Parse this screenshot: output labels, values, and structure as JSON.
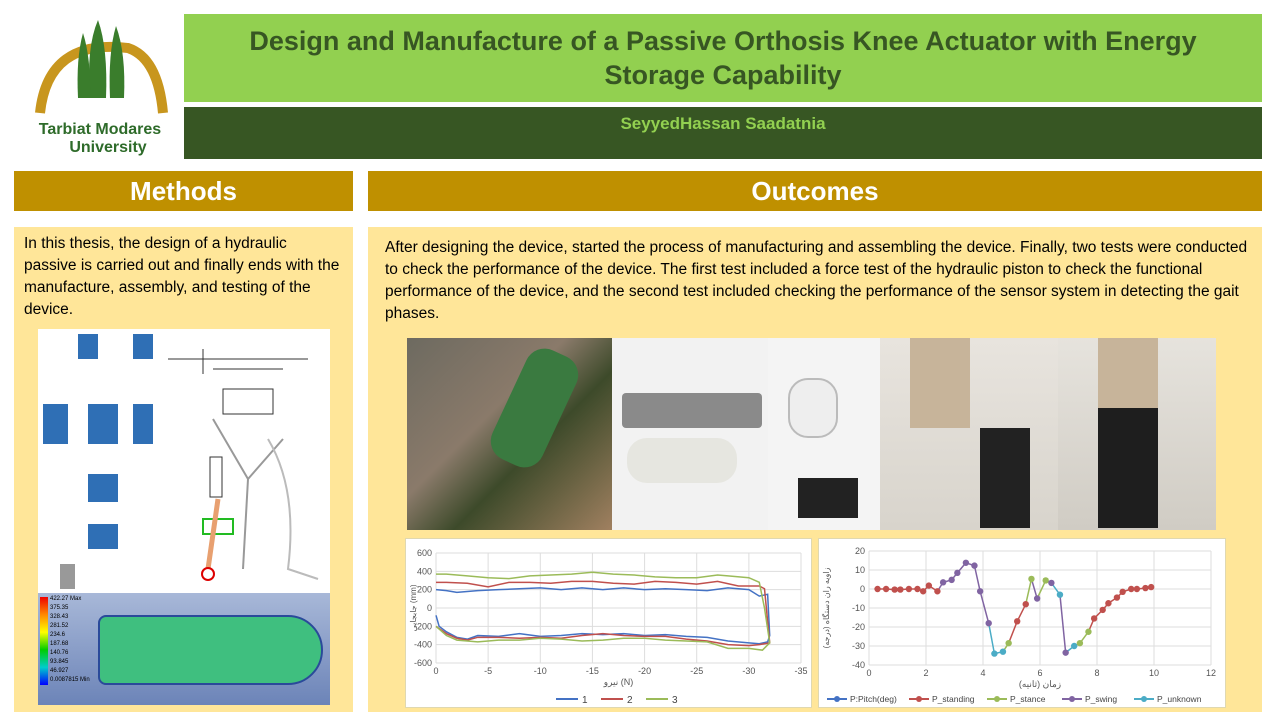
{
  "logo": {
    "name": "Tarbiat Modares University",
    "line1": "Tarbiat Modares",
    "line2": "University"
  },
  "title": "Design and Manufacture of a Passive Orthosis Knee Actuator with Energy Storage Capability",
  "author": "SeyyedHassan Saadatnia",
  "methods": {
    "heading": "Methods",
    "text": "In this thesis, the design of a hydraulic passive is carried out and finally ends with the manufacture, assembly, and testing of the device.",
    "fem_legend": [
      "422.27 Max",
      "375.35",
      "328.43",
      "281.52",
      "234.6",
      "187.68",
      "140.76",
      "93.845",
      "46.927",
      "0.0087815 Min"
    ]
  },
  "outcomes": {
    "heading": "Outcomes",
    "text": "After designing the device, started the process of manufacturing and assembling the device. Finally, two tests were conducted to check the performance of the device. The first test included a force test of the hydraulic piston to check the functional performance of the device, and the second test included checking the performance of the sensor system in detecting the gait phases."
  },
  "colors": {
    "title_bg": "#92d050",
    "author_bg": "#375623",
    "header_bg": "#bf9000",
    "panel_bg": "#ffe699"
  },
  "chart_data": [
    {
      "type": "line",
      "xlabel": "نیرو (N)",
      "ylabel": "جابجایی (mm)",
      "xlim": [
        0,
        -35
      ],
      "ylim": [
        -600,
        600
      ],
      "xticks": [
        0,
        -5,
        -10,
        -15,
        -20,
        -25,
        -30,
        -35
      ],
      "yticks": [
        600,
        400,
        200,
        0,
        -200,
        -400,
        -600
      ],
      "grid": true,
      "legend": "bottom",
      "series": [
        {
          "name": "1",
          "color": "#4472c4",
          "points": [
            [
              0,
              -80
            ],
            [
              -0.3,
              -200
            ],
            [
              -1,
              -260
            ],
            [
              -2,
              -320
            ],
            [
              -3,
              -340
            ],
            [
              -4,
              -300
            ],
            [
              -6,
              -310
            ],
            [
              -8,
              -280
            ],
            [
              -10,
              -310
            ],
            [
              -12,
              -300
            ],
            [
              -14,
              -280
            ],
            [
              -16,
              -290
            ],
            [
              -18,
              -280
            ],
            [
              -20,
              -300
            ],
            [
              -22,
              -290
            ],
            [
              -24,
              -310
            ],
            [
              -26,
              -320
            ],
            [
              -28,
              -360
            ],
            [
              -30,
              -380
            ],
            [
              -31,
              -390
            ],
            [
              -31.8,
              -370
            ],
            [
              -32,
              -300
            ],
            [
              -31.8,
              150
            ],
            [
              -31,
              130
            ],
            [
              -30,
              200
            ],
            [
              -28,
              220
            ],
            [
              -26,
              190
            ],
            [
              -24,
              200
            ],
            [
              -22,
              210
            ],
            [
              -20,
              200
            ],
            [
              -18,
              220
            ],
            [
              -16,
              200
            ],
            [
              -14,
              220
            ],
            [
              -12,
              200
            ],
            [
              -10,
              220
            ],
            [
              -8,
              210
            ],
            [
              -6,
              200
            ],
            [
              -4,
              190
            ],
            [
              -2,
              170
            ],
            [
              -1,
              190
            ],
            [
              0,
              200
            ]
          ]
        },
        {
          "name": "2",
          "color": "#c0504d",
          "points": [
            [
              0,
              -200
            ],
            [
              -1,
              -280
            ],
            [
              -2,
              -330
            ],
            [
              -3,
              -350
            ],
            [
              -4,
              -320
            ],
            [
              -6,
              -320
            ],
            [
              -8,
              -330
            ],
            [
              -10,
              -320
            ],
            [
              -12,
              -330
            ],
            [
              -14,
              -300
            ],
            [
              -16,
              -280
            ],
            [
              -18,
              -300
            ],
            [
              -20,
              -310
            ],
            [
              -22,
              -310
            ],
            [
              -24,
              -340
            ],
            [
              -26,
              -360
            ],
            [
              -28,
              -400
            ],
            [
              -30,
              -410
            ],
            [
              -31,
              -400
            ],
            [
              -32,
              -380
            ],
            [
              -31.5,
              210
            ],
            [
              -31,
              240
            ],
            [
              -29,
              240
            ],
            [
              -27,
              290
            ],
            [
              -25,
              260
            ],
            [
              -23,
              280
            ],
            [
              -21,
              290
            ],
            [
              -19,
              260
            ],
            [
              -17,
              270
            ],
            [
              -15,
              290
            ],
            [
              -13,
              290
            ],
            [
              -11,
              270
            ],
            [
              -9,
              280
            ],
            [
              -7,
              280
            ],
            [
              -5,
              230
            ],
            [
              -3,
              270
            ],
            [
              -1,
              280
            ],
            [
              0,
              280
            ]
          ]
        },
        {
          "name": "3",
          "color": "#9bbb59",
          "points": [
            [
              0,
              -200
            ],
            [
              -1,
              -300
            ],
            [
              -2,
              -350
            ],
            [
              -4,
              -370
            ],
            [
              -6,
              -350
            ],
            [
              -8,
              -350
            ],
            [
              -10,
              -330
            ],
            [
              -12,
              -340
            ],
            [
              -14,
              -360
            ],
            [
              -16,
              -350
            ],
            [
              -18,
              -330
            ],
            [
              -20,
              -330
            ],
            [
              -22,
              -350
            ],
            [
              -24,
              -360
            ],
            [
              -26,
              -370
            ],
            [
              -28,
              -440
            ],
            [
              -30,
              -440
            ],
            [
              -31.3,
              -460
            ],
            [
              -32,
              -380
            ],
            [
              -31.5,
              0
            ],
            [
              -31,
              280
            ],
            [
              -30,
              330
            ],
            [
              -28,
              350
            ],
            [
              -27,
              360
            ],
            [
              -25,
              330
            ],
            [
              -23,
              330
            ],
            [
              -21,
              340
            ],
            [
              -19,
              360
            ],
            [
              -17,
              370
            ],
            [
              -15,
              390
            ],
            [
              -13,
              370
            ],
            [
              -11,
              360
            ],
            [
              -9,
              350
            ],
            [
              -7,
              320
            ],
            [
              -5,
              330
            ],
            [
              -3,
              350
            ],
            [
              -1,
              370
            ],
            [
              0,
              370
            ]
          ]
        }
      ]
    },
    {
      "type": "line",
      "xlabel": "زمان (ثانیه)",
      "ylabel": "زاویه ران دستگاه (درجه)",
      "xlim": [
        0,
        12
      ],
      "ylim": [
        -40,
        20
      ],
      "xticks": [
        0,
        2,
        4,
        6,
        8,
        10,
        12
      ],
      "yticks": [
        20,
        10,
        0,
        -10,
        -20,
        -30,
        -40
      ],
      "grid": true,
      "legend": "bottom",
      "legend_entries": [
        {
          "name": "P:Pitch(deg)",
          "color": "#4472c4"
        },
        {
          "name": "P_standing",
          "color": "#c0504d"
        },
        {
          "name": "P_stance",
          "color": "#9bbb59"
        },
        {
          "name": "P_swing",
          "color": "#8064a2"
        },
        {
          "name": "P_unknown",
          "color": "#4bacc6"
        }
      ],
      "points": [
        [
          0.3,
          0,
          "P_standing"
        ],
        [
          0.6,
          0,
          "P_standing"
        ],
        [
          0.9,
          -0.3,
          "P_standing"
        ],
        [
          1.1,
          -0.3,
          "P_standing"
        ],
        [
          1.4,
          0,
          "P_standing"
        ],
        [
          1.7,
          0,
          "P_standing"
        ],
        [
          1.9,
          -1.2,
          "P_standing"
        ],
        [
          2.1,
          1.8,
          "P_standing"
        ],
        [
          2.4,
          -1.2,
          "P_standing"
        ],
        [
          2.6,
          3.5,
          "P_swing"
        ],
        [
          2.9,
          4.8,
          "P_swing"
        ],
        [
          3.1,
          8.5,
          "P_swing"
        ],
        [
          3.4,
          13.8,
          "P_swing"
        ],
        [
          3.7,
          12.3,
          "P_swing"
        ],
        [
          3.9,
          -1.2,
          "P_swing"
        ],
        [
          4.2,
          -18,
          "P_swing"
        ],
        [
          4.4,
          -34,
          "P_unknown"
        ],
        [
          4.7,
          -33,
          "P_unknown"
        ],
        [
          4.9,
          -28.5,
          "P_stance"
        ],
        [
          5.2,
          -17,
          "P_standing"
        ],
        [
          5.5,
          -8,
          "P_standing"
        ],
        [
          5.7,
          5.3,
          "P_stance"
        ],
        [
          5.9,
          -5,
          "P_swing"
        ],
        [
          6.2,
          4.5,
          "P_stance"
        ],
        [
          6.4,
          3.2,
          "P_swing"
        ],
        [
          6.7,
          -3,
          "P_unknown"
        ],
        [
          6.9,
          -33.5,
          "P_swing"
        ],
        [
          7.2,
          -30,
          "P_unknown"
        ],
        [
          7.4,
          -28.5,
          "P_stance"
        ],
        [
          7.7,
          -22.5,
          "P_stance"
        ],
        [
          7.9,
          -15.5,
          "P_standing"
        ],
        [
          8.2,
          -11,
          "P_standing"
        ],
        [
          8.4,
          -7.5,
          "P_standing"
        ],
        [
          8.7,
          -4.5,
          "P_standing"
        ],
        [
          8.9,
          -1.5,
          "P_standing"
        ],
        [
          9.2,
          0,
          "P_standing"
        ],
        [
          9.4,
          0,
          "P_standing"
        ],
        [
          9.7,
          0.5,
          "P_standing"
        ],
        [
          9.9,
          1,
          "P_standing"
        ]
      ]
    }
  ]
}
